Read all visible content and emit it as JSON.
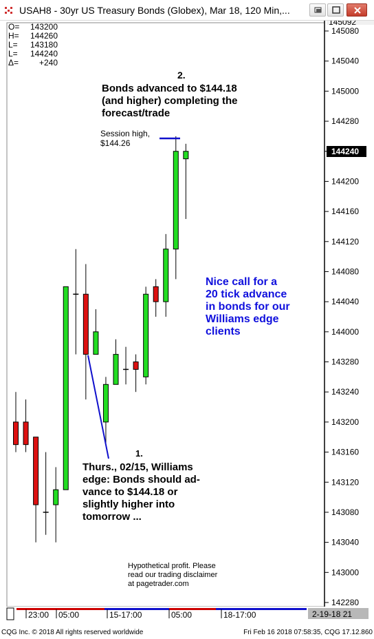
{
  "window": {
    "title": "USAH8 - 30yr US Treasury Bonds (Globex), Mar 18, 120 Min,...",
    "icon": "cqg-app-icon",
    "buttons": [
      "restore-button",
      "maximize-button",
      "close-button"
    ]
  },
  "ohlc_box": [
    {
      "label": "O=",
      "value": "143200"
    },
    {
      "label": "H=",
      "value": "144260"
    },
    {
      "label": "L=",
      "value": "143180"
    },
    {
      "label": "L=",
      "value": "144240"
    },
    {
      "label": "Δ=",
      "value": "+240"
    }
  ],
  "price_labels": {
    "top_clipped": "145092",
    "current_tag": "144240"
  },
  "annotations": {
    "a2_number": "2.",
    "a2_lines": [
      "Bonds advanced to $144.18",
      "(and higher) completing the",
      "forecast/trade"
    ],
    "session_high_lines": [
      "Session high,",
      "$144.26"
    ],
    "nice_call_lines": [
      "Nice call for a",
      "20 tick advance",
      "in bonds for our",
      "Williams edge",
      "clients"
    ],
    "a1_number": "1.",
    "a1_lines": [
      "Thurs., 02/15, Williams",
      "edge: Bonds should ad-",
      "vance to $144.18 or",
      "slightly higher into",
      "tomorrow ..."
    ],
    "disclaimer_lines": [
      "Hypothetical profit.  Please",
      "read our trading disclaimer",
      "at pagetrader.com"
    ]
  },
  "time_axis": {
    "labels": [
      "23:00",
      "05:00",
      "15-17:00",
      "05:00",
      "18-17:00"
    ],
    "date_box": "2-19-18 21"
  },
  "status": {
    "left": "CQG Inc. © 2018 All rights reserved worldwide",
    "right": "Fri Feb 16 2018 07:58:35, CQG 17.12.860"
  },
  "colors": {
    "up": "#22dd22",
    "down": "#dd1111",
    "annotation_blue": "#1010dd",
    "session_bar_red": "#cc0000",
    "session_bar_blue": "#1010cc"
  },
  "chart_data": {
    "type": "candlestick",
    "symbol": "USAH8",
    "interval": "120 Min",
    "y_tick_labels": [
      "145080",
      "145040",
      "145000",
      "144280",
      "144240",
      "144200",
      "144160",
      "144120",
      "144080",
      "144040",
      "144000",
      "143280",
      "143240",
      "143200",
      "143160",
      "143120",
      "143080",
      "143040",
      "143000",
      "142280"
    ],
    "candles": [
      {
        "open": "143200",
        "high": "143240",
        "low": "143160",
        "close": "143170"
      },
      {
        "open": "143200",
        "high": "143230",
        "low": "143160",
        "close": "143170"
      },
      {
        "open": "143180",
        "high": "143180",
        "low": "143040",
        "close": "143090"
      },
      {
        "open": "143080",
        "high": "143160",
        "low": "143050",
        "close": "143080"
      },
      {
        "open": "143090",
        "high": "143140",
        "low": "143040",
        "close": "143110"
      },
      {
        "open": "143110",
        "high": "144060",
        "low": "143110",
        "close": "144060"
      },
      {
        "open": "144050",
        "high": "144110",
        "low": "143290",
        "close": "144050"
      },
      {
        "open": "144050",
        "high": "144090",
        "low": "143230",
        "close": "143290"
      },
      {
        "open": "143290",
        "high": "144030",
        "low": "143290",
        "close": "144000"
      },
      {
        "open": "143200",
        "high": "143260",
        "low": "143170",
        "close": "143250"
      },
      {
        "open": "143250",
        "high": "143310",
        "low": "143250",
        "close": "143290"
      },
      {
        "open": "143270",
        "high": "143300",
        "low": "143250",
        "close": "143270"
      },
      {
        "open": "143280",
        "high": "143290",
        "low": "143240",
        "close": "143270"
      },
      {
        "open": "143260",
        "high": "144060",
        "low": "143250",
        "close": "144050"
      },
      {
        "open": "144060",
        "high": "144070",
        "low": "144020",
        "close": "144040"
      },
      {
        "open": "144040",
        "high": "144130",
        "low": "144020",
        "close": "144110"
      },
      {
        "open": "144110",
        "high": "144260",
        "low": "144070",
        "close": "144240"
      },
      {
        "open": "144230",
        "high": "144250",
        "low": "144150",
        "close": "144240"
      }
    ]
  }
}
